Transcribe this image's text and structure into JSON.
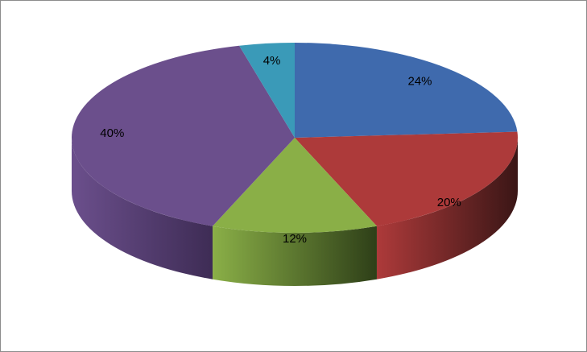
{
  "chart_data": {
    "type": "pie",
    "style": "3d",
    "start": "top",
    "direction": "clockwise",
    "slices": [
      {
        "value": 24,
        "label": "24%",
        "color": "#3f6aad",
        "side": "#1f3766"
      },
      {
        "value": 20,
        "label": "20%",
        "color": "#ad3a3a",
        "side": "#3a1616"
      },
      {
        "value": 12,
        "label": "12%",
        "color": "#8aaf47",
        "side": "#2e3f18"
      },
      {
        "value": 40,
        "label": "40%",
        "color": "#6b4f8c",
        "side": "#3e2c55"
      },
      {
        "value": 4,
        "label": "4%",
        "color": "#3a9ab8",
        "side": "#1d5566"
      }
    ],
    "legend": "none"
  }
}
